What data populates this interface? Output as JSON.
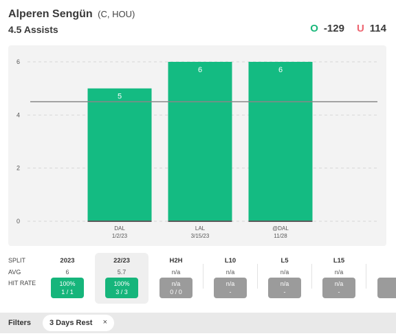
{
  "header": {
    "player_name": "Alperen Sengün",
    "team_pos": "(C, HOU)",
    "market": "4.5 Assists",
    "over_label": "O",
    "over_odds": "-129",
    "under_label": "U",
    "under_odds": "114"
  },
  "chart_data": {
    "type": "bar",
    "categories": [
      "DAL|1/2/23",
      "LAL|3/15/23",
      "@DAL|11/28"
    ],
    "opponents": [
      "DAL",
      "LAL",
      "@DAL"
    ],
    "dates": [
      "1/2/23",
      "3/15/23",
      "11/28"
    ],
    "values": [
      5,
      6,
      6
    ],
    "ylim": [
      0,
      6
    ],
    "yticks": [
      0,
      2,
      4,
      6
    ],
    "line": 4.5,
    "grid": true,
    "bar_color": "#14bb82",
    "line_color": "#888888"
  },
  "splits": {
    "row_labels": {
      "split": "SPLIT",
      "avg": "AVG",
      "hit_rate": "HIT RATE"
    },
    "columns": [
      {
        "header": "2023",
        "avg": "6",
        "pct": "100%",
        "frac": "1 / 1",
        "tone": "green",
        "selected": false
      },
      {
        "header": "22/23",
        "avg": "5.7",
        "pct": "100%",
        "frac": "3 / 3",
        "tone": "green",
        "selected": true
      },
      {
        "header": "H2H",
        "avg": "n/a",
        "pct": "n/a",
        "frac": "0 / 0",
        "tone": "gray",
        "selected": false
      },
      {
        "header": "L10",
        "avg": "n/a",
        "pct": "n/a",
        "frac": "-",
        "tone": "gray",
        "selected": false
      },
      {
        "header": "L5",
        "avg": "n/a",
        "pct": "n/a",
        "frac": "-",
        "tone": "gray",
        "selected": false
      },
      {
        "header": "L15",
        "avg": "n/a",
        "pct": "n/a",
        "frac": "-",
        "tone": "gray",
        "selected": false
      }
    ]
  },
  "filters": {
    "label": "Filters",
    "chip_label": "3 Days Rest",
    "chip_close": "×"
  },
  "colors": {
    "accent_green": "#16b57b",
    "under_red": "#ee6470",
    "gray_pill": "#9b9b9b"
  }
}
